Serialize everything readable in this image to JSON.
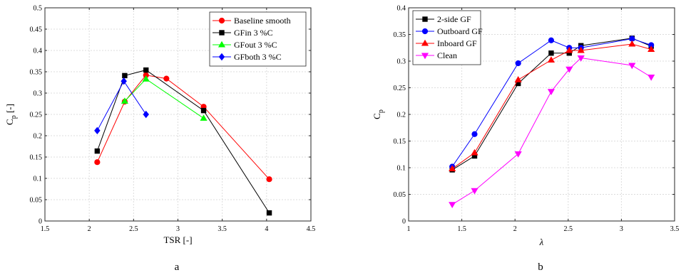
{
  "chart_data": [
    {
      "type": "line",
      "panel_label": "a",
      "xlabel": "TSR [-]",
      "ylabel_main": "C",
      "ylabel_sub": "p",
      "ylabel_unit": " [-]",
      "xlim": [
        1.5,
        4.5
      ],
      "ylim": [
        0,
        0.5
      ],
      "xticks": [
        "1.5",
        "2",
        "2.5",
        "3",
        "3.5",
        "4",
        "4.5"
      ],
      "yticks": [
        "0",
        "0.05",
        "0.1",
        "0.15",
        "0.2",
        "0.25",
        "0.3",
        "0.35",
        "0.4",
        "0.45",
        "0.5"
      ],
      "grid": true,
      "legend_position": "top-right",
      "series": [
        {
          "name": "Baseline smooth",
          "color": "#ff0000",
          "marker": "circle",
          "points": [
            [
              2.09,
              0.138
            ],
            [
              2.4,
              0.28
            ],
            [
              2.64,
              0.342
            ],
            [
              2.87,
              0.334
            ],
            [
              3.29,
              0.268
            ],
            [
              4.03,
              0.098
            ]
          ]
        },
        {
          "name": "GFin 3 %C",
          "color": "#000000",
          "marker": "square",
          "points": [
            [
              2.09,
              0.164
            ],
            [
              2.4,
              0.341
            ],
            [
              2.64,
              0.354
            ],
            [
              3.29,
              0.259
            ],
            [
              4.03,
              0.019
            ]
          ]
        },
        {
          "name": "GFout 3 %C",
          "color": "#00ff00",
          "marker": "triangle-up",
          "points": [
            [
              2.4,
              0.281
            ],
            [
              2.64,
              0.333
            ],
            [
              3.29,
              0.241
            ]
          ]
        },
        {
          "name": "GFboth 3 %C",
          "color": "#0000ff",
          "marker": "diamond",
          "points": [
            [
              2.09,
              0.212
            ],
            [
              2.39,
              0.328
            ],
            [
              2.64,
              0.25
            ]
          ]
        }
      ]
    },
    {
      "type": "line",
      "panel_label": "b",
      "xlabel": "λ",
      "ylabel_main": "C",
      "ylabel_sub": "p",
      "ylabel_unit": "",
      "xlim": [
        1,
        3.5
      ],
      "ylim": [
        0,
        0.4
      ],
      "xticks": [
        "1",
        "1.5",
        "2",
        "2.5",
        "3",
        "3.5"
      ],
      "yticks": [
        "0",
        "0.05",
        "0.1",
        "0.15",
        "0.2",
        "0.25",
        "0.3",
        "0.35",
        "0.4"
      ],
      "grid": true,
      "legend_position": "top-left",
      "series": [
        {
          "name": "2-side GF",
          "color": "#000000",
          "marker": "square",
          "points": [
            [
              1.41,
              0.096
            ],
            [
              1.62,
              0.122
            ],
            [
              2.03,
              0.258
            ],
            [
              2.34,
              0.315
            ],
            [
              2.51,
              0.315
            ],
            [
              2.62,
              0.329
            ],
            [
              3.1,
              0.343
            ],
            [
              3.28,
              0.328
            ]
          ]
        },
        {
          "name": "Outboard GF",
          "color": "#0000ff",
          "marker": "circle",
          "points": [
            [
              1.41,
              0.102
            ],
            [
              1.62,
              0.163
            ],
            [
              2.03,
              0.296
            ],
            [
              2.34,
              0.339
            ],
            [
              2.51,
              0.325
            ],
            [
              2.62,
              0.325
            ],
            [
              3.1,
              0.342
            ],
            [
              3.28,
              0.33
            ]
          ]
        },
        {
          "name": "Inboard GF",
          "color": "#ff0000",
          "marker": "triangle-up",
          "points": [
            [
              1.41,
              0.098
            ],
            [
              1.62,
              0.128
            ],
            [
              2.03,
              0.265
            ],
            [
              2.34,
              0.302
            ],
            [
              2.51,
              0.32
            ],
            [
              2.62,
              0.32
            ],
            [
              3.1,
              0.332
            ],
            [
              3.28,
              0.322
            ]
          ]
        },
        {
          "name": "Clean",
          "color": "#ff00ff",
          "marker": "triangle-down",
          "points": [
            [
              1.41,
              0.031
            ],
            [
              1.62,
              0.057
            ],
            [
              2.03,
              0.126
            ],
            [
              2.34,
              0.243
            ],
            [
              2.51,
              0.285
            ],
            [
              2.62,
              0.306
            ],
            [
              3.1,
              0.292
            ],
            [
              3.28,
              0.27
            ]
          ]
        }
      ]
    }
  ]
}
